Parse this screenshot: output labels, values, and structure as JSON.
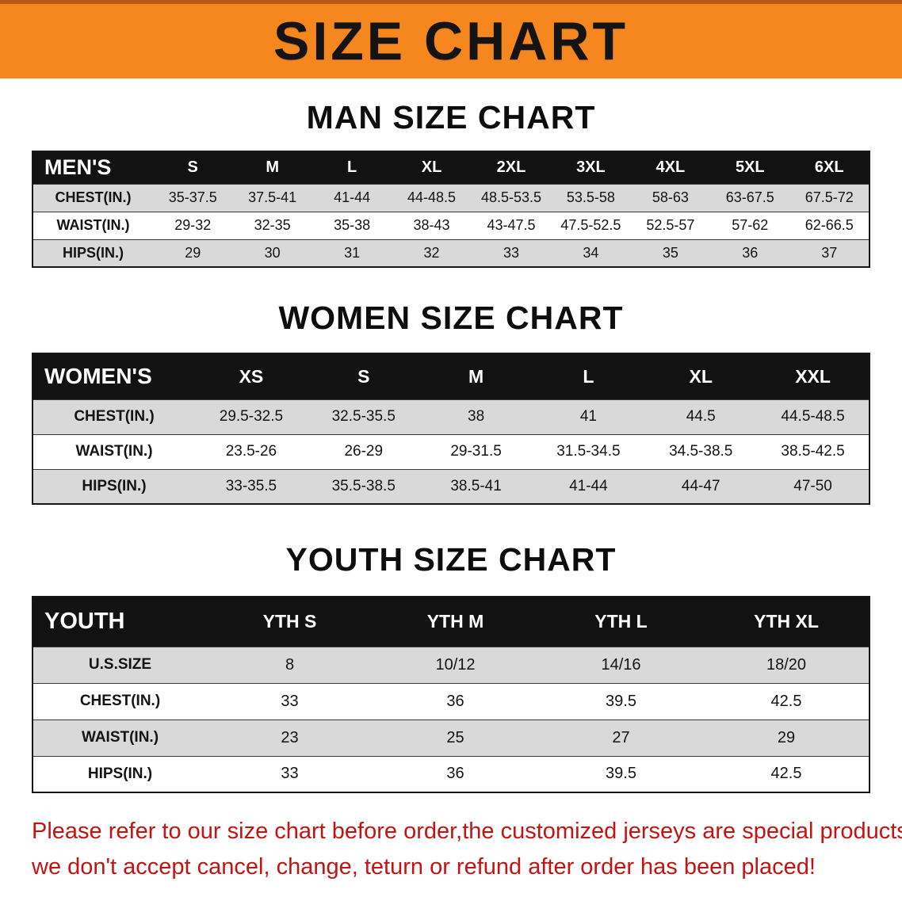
{
  "banner": {
    "title": "SIZE CHART"
  },
  "colors": {
    "banner_bg": "#f6871f",
    "table_header_bg": "#121212",
    "row_shade": "#d9d9d9",
    "note_red": "#c41313"
  },
  "sections": [
    {
      "heading": "MAN SIZE CHART",
      "table": {
        "title": "MEN'S",
        "columns": [
          "S",
          "M",
          "L",
          "XL",
          "2XL",
          "3XL",
          "4XL",
          "5XL",
          "6XL"
        ],
        "rows": [
          {
            "label": "CHEST(IN.)",
            "values": [
              "35-37.5",
              "37.5-41",
              "41-44",
              "44-48.5",
              "48.5-53.5",
              "53.5-58",
              "58-63",
              "63-67.5",
              "67.5-72"
            ]
          },
          {
            "label": "WAIST(IN.)",
            "values": [
              "29-32",
              "32-35",
              "35-38",
              "38-43",
              "43-47.5",
              "47.5-52.5",
              "52.5-57",
              "57-62",
              "62-66.5"
            ]
          },
          {
            "label": "HIPS(IN.)",
            "values": [
              "29",
              "30",
              "31",
              "32",
              "33",
              "34",
              "35",
              "36",
              "37"
            ]
          }
        ]
      }
    },
    {
      "heading": "WOMEN SIZE CHART",
      "table": {
        "title": "WOMEN'S",
        "columns": [
          "XS",
          "S",
          "M",
          "L",
          "XL",
          "XXL"
        ],
        "rows": [
          {
            "label": "CHEST(IN.)",
            "values": [
              "29.5-32.5",
              "32.5-35.5",
              "38",
              "41",
              "44.5",
              "44.5-48.5"
            ]
          },
          {
            "label": "WAIST(IN.)",
            "values": [
              "23.5-26",
              "26-29",
              "29-31.5",
              "31.5-34.5",
              "34.5-38.5",
              "38.5-42.5"
            ]
          },
          {
            "label": "HIPS(IN.)",
            "values": [
              "33-35.5",
              "35.5-38.5",
              "38.5-41",
              "41-44",
              "44-47",
              "47-50"
            ]
          }
        ]
      }
    },
    {
      "heading": "YOUTH SIZE CHART",
      "table": {
        "title": "YOUTH",
        "columns": [
          "YTH S",
          "YTH M",
          "YTH L",
          "YTH XL"
        ],
        "rows": [
          {
            "label": "U.S.SIZE",
            "values": [
              "8",
              "10/12",
              "14/16",
              "18/20"
            ]
          },
          {
            "label": "CHEST(IN.)",
            "values": [
              "33",
              "36",
              "39.5",
              "42.5"
            ]
          },
          {
            "label": "WAIST(IN.)",
            "values": [
              "23",
              "25",
              "27",
              "29"
            ]
          },
          {
            "label": "HIPS(IN.)",
            "values": [
              "33",
              "36",
              "39.5",
              "42.5"
            ]
          }
        ]
      }
    }
  ],
  "note": {
    "line1": "Please refer to our size chart before order,the customized jerseys are special products,",
    "line2": "we don't accept cancel, change, teturn or refund after order has been placed!"
  }
}
